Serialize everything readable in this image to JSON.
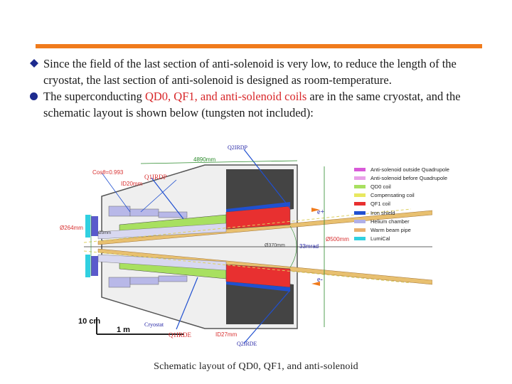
{
  "bullets": [
    {
      "marker": "diamond",
      "text": "Since the field of the last section of anti-solenoid is very low, to reduce the length of the cryostat, the last section of anti-solenoid is designed as room-temperature."
    },
    {
      "marker": "circle",
      "text_before": "The superconducting ",
      "highlight": "QD0, QF1, and anti-solenoid coils",
      "text_after": " are in the same cryostat, and the schematic layout is shown below (tungsten not included):"
    }
  ],
  "colors": {
    "accent_bar": "#f07b1c",
    "highlight_text": "#d8272a",
    "bullet_marker": "#1d2b8f"
  },
  "diagram": {
    "labels": {
      "q2irdp": "Q2IRDP",
      "length": "4890mm",
      "cos": "Cosθ=0.993",
      "q1irdp": "Q1IRDP",
      "id20": "ID20mm",
      "o264": "Ø264mm",
      "o500": "Ø500mm",
      "o3mm": "Ø3mm",
      "o370": "Ø370mm",
      "mrad": "33mrad",
      "eplus": "e+",
      "eminus": "e-",
      "scale_10cm": "10 cm",
      "scale_1m": "1 m",
      "cryostat": "Cryostat",
      "q1irde": "Q1IRDE",
      "id27": "ID27mm",
      "q2irde": "Q2IRDE"
    },
    "legend": [
      {
        "label": "Anti-solenoid outside Quadrupole",
        "color": "#d85ad8"
      },
      {
        "label": "Anti-solenoid before Quadrupole",
        "color": "#e8a0e8"
      },
      {
        "label": "QD0 coil",
        "color": "#a8e060"
      },
      {
        "label": "Compensating coil",
        "color": "#e8e860"
      },
      {
        "label": "QF1 coil",
        "color": "#e83030"
      },
      {
        "label": "Iron shield",
        "color": "#2050d0"
      },
      {
        "label": "Helium chamber",
        "color": "#b0b0e8"
      },
      {
        "label": "Warm beam pipe",
        "color": "#e8b070"
      },
      {
        "label": "LumiCal",
        "color": "#30d0e0"
      }
    ]
  },
  "caption": "Schematic layout of QD0, QF1, and anti-solenoid"
}
